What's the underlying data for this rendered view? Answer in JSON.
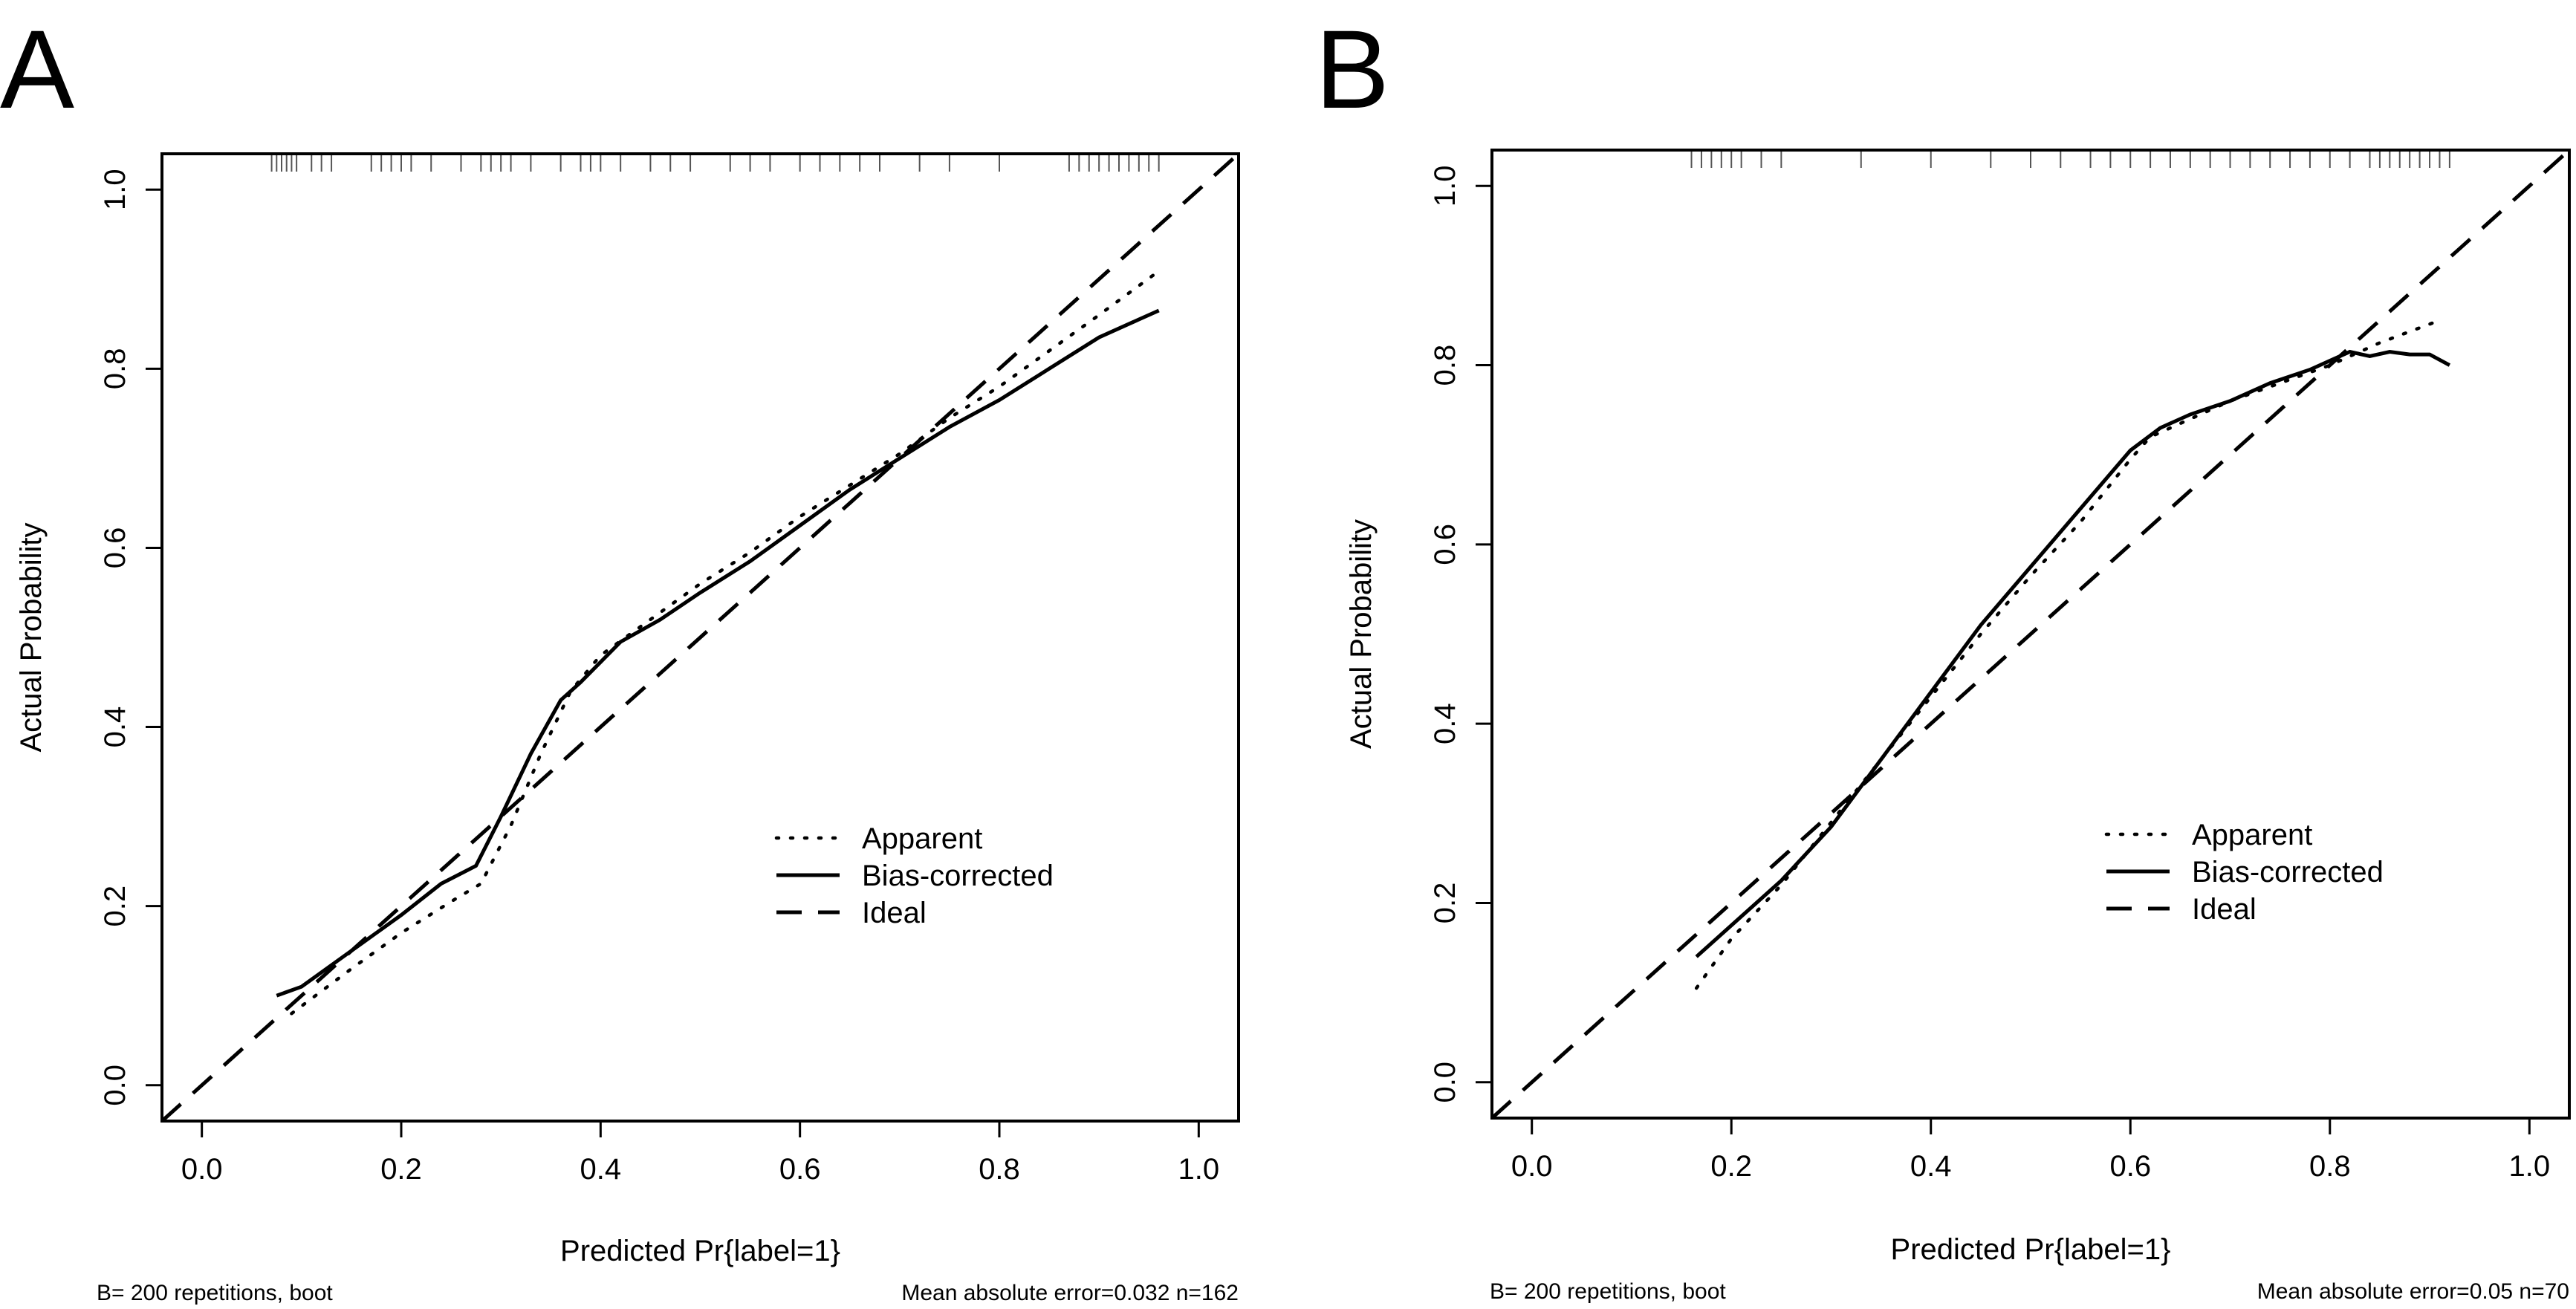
{
  "chart_data": [
    {
      "type": "line",
      "panel_label": "A",
      "xlabel": "Predicted Pr{label=1}",
      "ylabel": "Actual Probability",
      "xlim": [
        -0.04,
        1.04
      ],
      "ylim": [
        -0.04,
        1.04
      ],
      "x_ticks": [
        "0.0",
        "0.2",
        "0.4",
        "0.6",
        "0.8",
        "1.0"
      ],
      "y_ticks": [
        "0.0",
        "0.2",
        "0.4",
        "0.6",
        "0.8",
        "1.0"
      ],
      "legend": {
        "position": "bottom-right",
        "entries": [
          "Apparent",
          "Bias-corrected",
          "Ideal"
        ]
      },
      "footnote_left": "B= 200 repetitions, boot",
      "footnote_right": "Mean absolute error=0.032 n=162",
      "rug": [
        0.07,
        0.075,
        0.08,
        0.085,
        0.09,
        0.095,
        0.11,
        0.12,
        0.13,
        0.17,
        0.18,
        0.19,
        0.2,
        0.21,
        0.23,
        0.26,
        0.28,
        0.29,
        0.3,
        0.31,
        0.33,
        0.36,
        0.38,
        0.39,
        0.4,
        0.42,
        0.45,
        0.47,
        0.49,
        0.53,
        0.55,
        0.57,
        0.6,
        0.62,
        0.64,
        0.66,
        0.68,
        0.72,
        0.75,
        0.8,
        0.87,
        0.88,
        0.89,
        0.9,
        0.91,
        0.92,
        0.93,
        0.94,
        0.95,
        0.96
      ],
      "series": [
        {
          "name": "Apparent",
          "style": "dotted",
          "x": [
            0.09,
            0.15,
            0.2,
            0.25,
            0.28,
            0.31,
            0.34,
            0.37,
            0.4,
            0.45,
            0.5,
            0.55,
            0.6,
            0.65,
            0.7,
            0.75,
            0.8,
            0.85,
            0.9,
            0.955
          ],
          "y": [
            0.08,
            0.13,
            0.17,
            0.205,
            0.225,
            0.29,
            0.37,
            0.44,
            0.48,
            0.52,
            0.56,
            0.595,
            0.635,
            0.67,
            0.705,
            0.745,
            0.78,
            0.82,
            0.86,
            0.905
          ]
        },
        {
          "name": "Bias-corrected",
          "style": "solid",
          "x": [
            0.075,
            0.1,
            0.15,
            0.2,
            0.24,
            0.275,
            0.3,
            0.33,
            0.36,
            0.38,
            0.42,
            0.46,
            0.5,
            0.55,
            0.6,
            0.65,
            0.7,
            0.75,
            0.8,
            0.85,
            0.9,
            0.94,
            0.96
          ],
          "y": [
            0.1,
            0.11,
            0.15,
            0.19,
            0.225,
            0.245,
            0.3,
            0.37,
            0.43,
            0.45,
            0.495,
            0.52,
            0.55,
            0.585,
            0.625,
            0.665,
            0.7,
            0.735,
            0.765,
            0.8,
            0.835,
            0.855,
            0.865
          ]
        },
        {
          "name": "Ideal",
          "style": "dashed",
          "x": [
            -0.04,
            1.04
          ],
          "y": [
            -0.04,
            1.04
          ]
        }
      ]
    },
    {
      "type": "line",
      "panel_label": "B",
      "xlabel": "Predicted Pr{label=1}",
      "ylabel": "Actual Probability",
      "xlim": [
        -0.04,
        1.04
      ],
      "ylim": [
        -0.04,
        1.04
      ],
      "x_ticks": [
        "0.0",
        "0.2",
        "0.4",
        "0.6",
        "0.8",
        "1.0"
      ],
      "y_ticks": [
        "0.0",
        "0.2",
        "0.4",
        "0.6",
        "0.8",
        "1.0"
      ],
      "legend": {
        "position": "bottom-right",
        "entries": [
          "Apparent",
          "Bias-corrected",
          "Ideal"
        ]
      },
      "footnote_left": "B= 200 repetitions, boot",
      "footnote_right": "Mean absolute error=0.05 n=70",
      "rug": [
        0.16,
        0.17,
        0.18,
        0.19,
        0.2,
        0.21,
        0.23,
        0.25,
        0.33,
        0.4,
        0.46,
        0.5,
        0.53,
        0.56,
        0.58,
        0.6,
        0.62,
        0.64,
        0.66,
        0.68,
        0.7,
        0.72,
        0.74,
        0.76,
        0.78,
        0.8,
        0.82,
        0.84,
        0.85,
        0.86,
        0.87,
        0.88,
        0.89,
        0.9,
        0.91,
        0.92
      ],
      "series": [
        {
          "name": "Apparent",
          "style": "dotted",
          "x": [
            0.165,
            0.2,
            0.25,
            0.3,
            0.35,
            0.4,
            0.45,
            0.5,
            0.55,
            0.6,
            0.62,
            0.65,
            0.7,
            0.75,
            0.8,
            0.85,
            0.91
          ],
          "y": [
            0.105,
            0.16,
            0.22,
            0.29,
            0.36,
            0.43,
            0.5,
            0.565,
            0.625,
            0.695,
            0.72,
            0.735,
            0.76,
            0.78,
            0.8,
            0.825,
            0.85
          ]
        },
        {
          "name": "Bias-corrected",
          "style": "solid",
          "x": [
            0.165,
            0.2,
            0.25,
            0.3,
            0.35,
            0.4,
            0.45,
            0.5,
            0.55,
            0.6,
            0.63,
            0.66,
            0.7,
            0.74,
            0.78,
            0.8,
            0.82,
            0.84,
            0.86,
            0.88,
            0.9,
            0.92
          ],
          "y": [
            0.14,
            0.175,
            0.225,
            0.285,
            0.36,
            0.435,
            0.51,
            0.575,
            0.64,
            0.705,
            0.73,
            0.745,
            0.76,
            0.78,
            0.795,
            0.805,
            0.815,
            0.81,
            0.815,
            0.812,
            0.812,
            0.8
          ]
        },
        {
          "name": "Ideal",
          "style": "dashed",
          "x": [
            -0.04,
            1.04
          ],
          "y": [
            -0.04,
            1.04
          ]
        }
      ]
    }
  ]
}
